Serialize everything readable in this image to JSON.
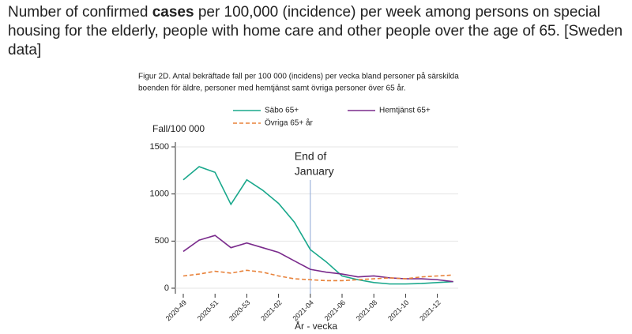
{
  "heading_parts": [
    "Number of confirmed",
    "cases",
    "per 100,000 (incidence) per week among persons on special housing for the elderly, people with home care and other people over the age of 65. [Sweden data]"
  ],
  "chart_data": {
    "type": "line",
    "title": [
      "Figur 2D. Antal bekräftade fall per 100 000 (incidens) per vecka bland personer på särskilda",
      "boenden för äldre, personer med hemtjänst samt övriga personer över 65 år."
    ],
    "y_label": "Fall/100 000",
    "x_label": "År - vecka",
    "categories": [
      "2020-49",
      null,
      "2020-51",
      null,
      "2020-53",
      null,
      "2021-02",
      null,
      "2021-04",
      null,
      "2021-06",
      null,
      "2021-08",
      null,
      "2021-10",
      null,
      "2021-12",
      null
    ],
    "series": [
      {
        "name": "Säbo 65+",
        "color": "#1aa88c",
        "dash": false,
        "values": [
          1150,
          1290,
          1230,
          890,
          1150,
          1040,
          900,
          700,
          410,
          280,
          130,
          90,
          60,
          45,
          45,
          50,
          60,
          70
        ]
      },
      {
        "name": "Hemtjänst 65+",
        "color": "#7a2b8c",
        "dash": false,
        "values": [
          390,
          510,
          560,
          430,
          480,
          430,
          380,
          290,
          200,
          170,
          150,
          120,
          130,
          110,
          100,
          100,
          90,
          70
        ]
      },
      {
        "name": "Övriga 65+ år",
        "color": "#e8823a",
        "dash": true,
        "values": [
          130,
          150,
          180,
          160,
          190,
          170,
          130,
          100,
          90,
          80,
          80,
          90,
          100,
          110,
          100,
          120,
          130,
          140
        ]
      }
    ],
    "ylim": [
      0,
      1500
    ],
    "yticks": [
      0,
      500,
      1000,
      1500
    ],
    "grid": true,
    "vline": "2021-04",
    "annotation": [
      "End of",
      "January"
    ]
  }
}
